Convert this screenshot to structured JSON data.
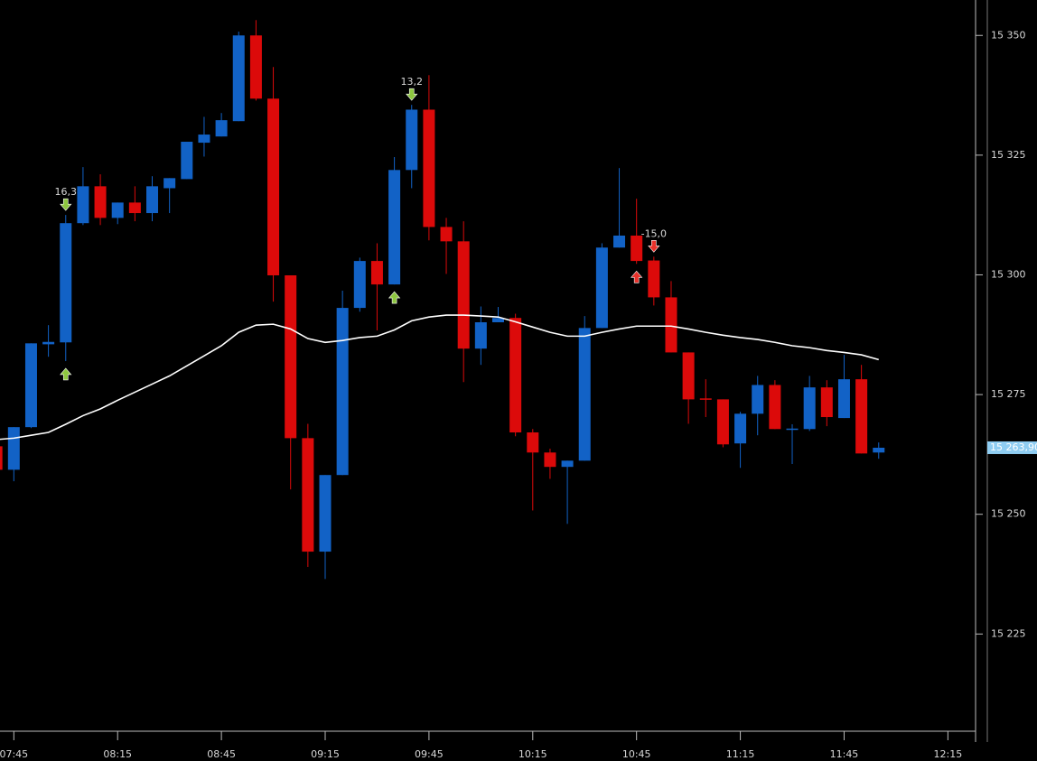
{
  "chart_data": {
    "type": "candlestick",
    "x": [
      "07:40",
      "07:45",
      "07:50",
      "07:55",
      "08:00",
      "08:05",
      "08:10",
      "08:15",
      "08:20",
      "08:25",
      "08:30",
      "08:35",
      "08:40",
      "08:45",
      "08:50",
      "08:55",
      "09:00",
      "09:05",
      "09:10",
      "09:15",
      "09:20",
      "09:25",
      "09:30",
      "09:35",
      "09:40",
      "09:45",
      "09:50",
      "09:55",
      "10:00",
      "10:05",
      "10:10",
      "10:15",
      "10:20",
      "10:25",
      "10:30",
      "10:35",
      "10:40",
      "10:45",
      "10:50",
      "10:55",
      "11:00",
      "11:05",
      "11:10",
      "11:15",
      "11:20",
      "11:25",
      "11:30",
      "11:35",
      "11:40",
      "11:45",
      "11:50",
      "11:55"
    ],
    "open": [
      15264.2,
      15259.3,
      15268.2,
      15285.5,
      15285.9,
      15310.8,
      15318.5,
      15311.9,
      15315.1,
      15312.9,
      15318.1,
      15320.0,
      15327.6,
      15328.9,
      15332.1,
      15350.0,
      15336.8,
      15299.9,
      15265.9,
      15242.2,
      15258.2,
      15293.1,
      15302.9,
      15298.0,
      15321.9,
      15334.5,
      15310.0,
      15307.0,
      15284.6,
      15290.1,
      15291.0,
      15267.1,
      15262.9,
      15259.9,
      15261.2,
      15288.9,
      15305.7,
      15308.2,
      15303.0,
      15295.3,
      15283.8,
      15274.2,
      15274.0,
      15264.8,
      15271.0,
      15277.0,
      15267.8,
      15267.8,
      15276.5,
      15270.1,
      15278.2,
      15262.9
    ],
    "high": [
      15265.0,
      15268.2,
      15285.7,
      15289.5,
      15312.5,
      15322.5,
      15321.0,
      15315.1,
      15318.5,
      15320.6,
      15320.2,
      15327.8,
      15333.0,
      15333.8,
      15350.8,
      15353.2,
      15343.4,
      15299.9,
      15268.9,
      15258.2,
      15296.7,
      15303.6,
      15306.6,
      15324.6,
      15335.5,
      15341.7,
      15311.9,
      15311.2,
      15293.4,
      15293.3,
      15291.9,
      15267.8,
      15263.7,
      15261.2,
      15291.4,
      15306.6,
      15322.3,
      15315.9,
      15303.8,
      15298.7,
      15283.8,
      15278.2,
      15274.0,
      15271.4,
      15278.9,
      15278.0,
      15268.8,
      15278.9,
      15278.0,
      15283.3,
      15281.2,
      15265.0
    ],
    "low": [
      15259.0,
      15256.9,
      15268.0,
      15282.9,
      15282.0,
      15310.4,
      15310.4,
      15310.6,
      15311.2,
      15311.2,
      15312.9,
      15320.0,
      15324.7,
      15328.9,
      15332.1,
      15336.4,
      15294.4,
      15255.2,
      15239.0,
      15236.5,
      15258.2,
      15292.3,
      15288.4,
      15298.0,
      15318.1,
      15307.2,
      15300.2,
      15277.6,
      15281.2,
      15290.1,
      15266.3,
      15250.8,
      15257.4,
      15248.0,
      15261.2,
      15288.9,
      15305.7,
      15302.3,
      15293.6,
      15283.8,
      15268.9,
      15270.3,
      15264.0,
      15259.7,
      15266.5,
      15267.8,
      15260.5,
      15267.4,
      15268.4,
      15270.1,
      15262.7,
      15261.6
    ],
    "close": [
      15259.3,
      15268.2,
      15285.7,
      15286.0,
      15310.8,
      15318.5,
      15311.9,
      15315.1,
      15312.9,
      15318.5,
      15320.2,
      15327.8,
      15329.3,
      15332.3,
      15350.0,
      15336.8,
      15299.9,
      15265.9,
      15242.2,
      15258.2,
      15293.1,
      15302.9,
      15298.0,
      15321.9,
      15334.5,
      15310.0,
      15307.0,
      15284.6,
      15290.1,
      15291.0,
      15267.1,
      15262.9,
      15259.9,
      15261.2,
      15288.9,
      15305.7,
      15308.2,
      15302.9,
      15295.3,
      15283.8,
      15274.0,
      15274.0,
      15264.6,
      15271.0,
      15277.0,
      15267.8,
      15267.9,
      15276.5,
      15270.3,
      15278.2,
      15262.7,
      15263.9
    ],
    "up_color": "#1262c6",
    "down_color": "#dc0a0a",
    "series": [
      {
        "color": "#ffffff",
        "values": [
          15265.6,
          15265.9,
          15266.5,
          15267.1,
          15268.8,
          15270.6,
          15272.0,
          15273.8,
          15275.5,
          15277.2,
          15278.9,
          15281.0,
          15283.1,
          15285.2,
          15288.0,
          15289.5,
          15289.7,
          15288.7,
          15286.7,
          15285.9,
          15286.3,
          15286.9,
          15287.2,
          15288.5,
          15290.4,
          15291.2,
          15291.6,
          15291.6,
          15291.4,
          15291.2,
          15290.2,
          15289.1,
          15288.0,
          15287.2,
          15287.2,
          15288.0,
          15288.7,
          15289.3,
          15289.3,
          15289.3,
          15288.7,
          15288.0,
          15287.4,
          15286.9,
          15286.5,
          15285.9,
          15285.2,
          15284.8,
          15284.2,
          15283.8,
          15283.3,
          15282.3
        ]
      }
    ],
    "signals": [
      {
        "x": "08:00",
        "direction": "down",
        "color": "#8dc63f",
        "label": "16,3"
      },
      {
        "x": "08:00",
        "direction": "up",
        "color": "#8dc63f"
      },
      {
        "x": "09:35",
        "direction": "up",
        "color": "#8dc63f"
      },
      {
        "x": "09:40",
        "direction": "down",
        "color": "#8dc63f",
        "label": "13,2"
      },
      {
        "x": "10:45",
        "direction": "up",
        "color": "#e8322b"
      },
      {
        "x": "10:50",
        "direction": "down",
        "color": "#e8322b",
        "label": "-15,0"
      }
    ],
    "last_price": {
      "value": 15263.9,
      "label": "15 263,90"
    },
    "xlim": [
      "07:41",
      "12:23"
    ],
    "xticks": [
      "07:45",
      "08:15",
      "08:45",
      "09:15",
      "09:45",
      "10:15",
      "10:45",
      "11:15",
      "11:45",
      "12:15"
    ],
    "ylim": [
      15204.7,
      15357.4
    ],
    "yticks": [
      {
        "value": 15225,
        "label": "15 225"
      },
      {
        "value": 15250,
        "label": "15 250"
      },
      {
        "value": 15275,
        "label": "15 275"
      },
      {
        "value": 15300,
        "label": "15 300"
      },
      {
        "value": 15325,
        "label": "15 325"
      },
      {
        "value": 15350,
        "label": "15 350"
      }
    ]
  }
}
